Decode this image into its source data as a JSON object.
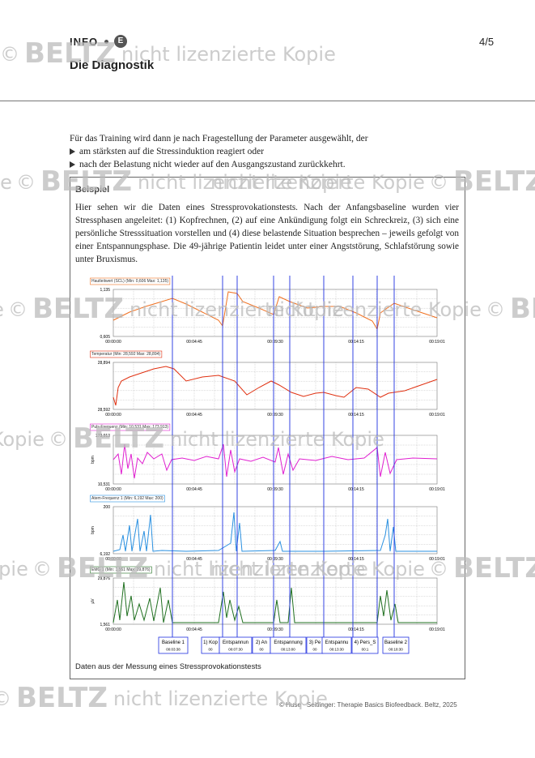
{
  "header": {
    "label": "INFO",
    "badge": "E",
    "title": "Die Diagnostik",
    "page": "4/5"
  },
  "intro": {
    "text": "Für das Training wird dann je nach Fragestellung der Parameter ausgewählt, der",
    "bullets": [
      "am stärksten auf die Stressinduktion reagiert oder",
      "nach der Belastung nicht wieder auf den Ausgangszustand zurückkehrt."
    ]
  },
  "example": {
    "heading": "Beispiel",
    "paragraph": "Hier sehen wir die Daten eines Stressprovokationstests. Nach der Anfangsbaseline wurden vier Stressphasen angeleitet: (1) Kopfrechnen, (2) auf eine Ankündigung folgt ein Schreckreiz, (3) sich eine persönliche Stresssituation vorstellen und (4) diese belastende Situation besprechen – jeweils gefolgt von einer Entspannungsphase. Die 49-jährige Patientin leidet unter einer Angststörung, Schlafstörung sowie unter Bruxismus.",
    "figure": {
      "time_labels": [
        "00:00:00",
        "00:04:45",
        "00:09:30",
        "00:14:15",
        "00:19:01"
      ],
      "panels": [
        {
          "legend": "Hautleitwert (SCL) (Min: 0,606 Max: 1,135)",
          "ymax": "1,135",
          "ymin": "0,605"
        },
        {
          "legend": "Temperatur (Min: 28,592 Max: 28,894)",
          "ymax": "28,894",
          "ymin": "28,592"
        },
        {
          "legend": "Puls-Frequenz (Min: 10,531 Max: 173,913)",
          "ymax": "173,913",
          "ymin": "10,531",
          "unit": "bpm"
        },
        {
          "legend": "Atem-Frequenz 1 (Min: 6,192 Max: 200)",
          "ymax": "200",
          "ymin": "6,192",
          "unit": "bpm"
        },
        {
          "legend": "EMG 1 (Min: 1,561 Max: 29,876)",
          "ymax": "29,876",
          "ymin": "1,561",
          "unit": "µV"
        }
      ],
      "markers": [
        {
          "name": "Baseline 1",
          "time": "00:03:38"
        },
        {
          "name": "1) Kop",
          "time": "00"
        },
        {
          "name": "Entspannun",
          "time": "00:07:30"
        },
        {
          "name": "2) An",
          "time": "00"
        },
        {
          "name": "Entspannung",
          "time": "00:13:00"
        },
        {
          "name": "3) Pe",
          "time": "00"
        },
        {
          "name": "Entspannu",
          "time": "00:13:30"
        },
        {
          "name": "4) Pers_S",
          "time": "00:1"
        },
        {
          "name": "Baseline 2",
          "time": "00:18:30"
        }
      ]
    },
    "caption": "Daten aus der Messung eines Stressprovokationstests"
  },
  "footer": "© Huse · Seitlinger: Therapie Basics Biofeedback. Beltz, 2025",
  "watermark": {
    "copyright": "©",
    "brand": "BELTZ",
    "text": "nicht lizenzierte Kopie"
  }
}
